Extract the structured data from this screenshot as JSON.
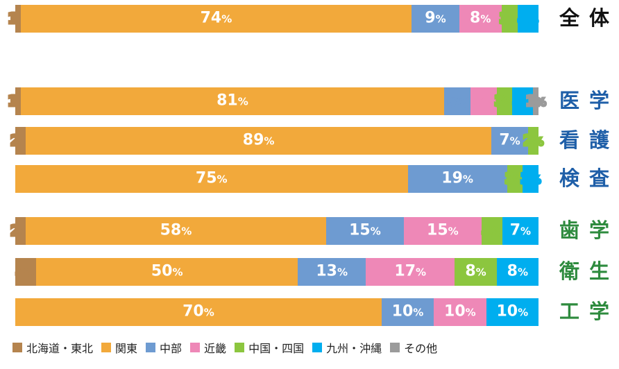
{
  "chart_data": {
    "type": "bar",
    "orientation": "horizontal",
    "stacked": true,
    "unit": "%",
    "series": [
      {
        "key": "hokkaido_tohoku",
        "name": "北海道・東北",
        "color": "#B5844E"
      },
      {
        "key": "kanto",
        "name": "関東",
        "color": "#F2A93B"
      },
      {
        "key": "chubu",
        "name": "中部",
        "color": "#6E9BD1"
      },
      {
        "key": "kinki",
        "name": "近畿",
        "color": "#EE88B7"
      },
      {
        "key": "chugoku_shikoku",
        "name": "中国・四国",
        "color": "#8CC63F"
      },
      {
        "key": "kyushu_okinawa",
        "name": "九州・沖縄",
        "color": "#00AEEF"
      },
      {
        "key": "other",
        "name": "その他",
        "color": "#9B9B9B"
      }
    ],
    "rows": [
      {
        "category": "全体",
        "label_color": "#111111",
        "values": [
          1,
          74,
          9,
          8,
          3,
          4,
          0
        ]
      },
      {
        "category": "医学",
        "label_color": "#1F5FA8",
        "values": [
          1,
          81,
          5,
          5,
          3,
          4,
          1
        ]
      },
      {
        "category": "看護",
        "label_color": "#1F5FA8",
        "values": [
          2,
          89,
          7,
          0,
          2,
          0,
          0
        ]
      },
      {
        "category": "検査",
        "label_color": "#1F5FA8",
        "values": [
          0,
          75,
          19,
          0,
          3,
          3,
          0
        ]
      },
      {
        "category": "歯学",
        "label_color": "#2E8B3E",
        "values": [
          2,
          58,
          15,
          15,
          4,
          7,
          0
        ]
      },
      {
        "category": "衛生",
        "label_color": "#2E8B3E",
        "values": [
          4,
          50,
          13,
          17,
          8,
          8,
          0
        ]
      },
      {
        "category": "工学",
        "label_color": "#2E8B3E",
        "values": [
          0,
          70,
          10,
          10,
          0,
          10,
          0
        ]
      }
    ]
  }
}
